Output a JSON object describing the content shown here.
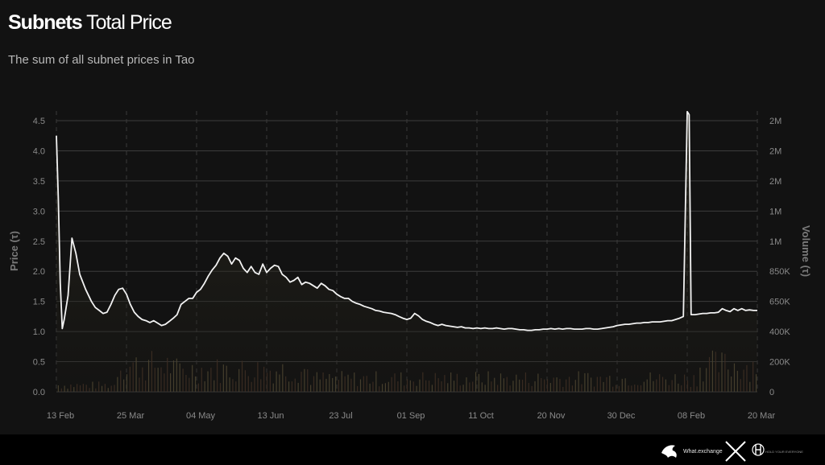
{
  "header": {
    "title_bold": "Subnets",
    "title_light": "Total Price",
    "subtitle": "The sum of all subnet prices in Tao"
  },
  "chart_data": {
    "type": "line",
    "ylabel_left": "Price (τ)",
    "ylabel_right": "Volume (τ)",
    "y_left_ticks": [
      "0.0",
      "0.5",
      "1.0",
      "1.5",
      "2.0",
      "2.5",
      "3.0",
      "3.5",
      "4.0",
      "4.5"
    ],
    "y_left_lim": [
      0,
      4.5
    ],
    "y_right_ticks": [
      "0",
      "200K",
      "400K",
      "650K",
      "850K",
      "1M",
      "1M",
      "2M",
      "2M",
      "2M"
    ],
    "x_ticks": [
      "13 Feb",
      "25 Mar",
      "04 May",
      "13 Jun",
      "23 Jul",
      "01 Sep",
      "11 Oct",
      "20 Nov",
      "30 Dec",
      "08 Feb",
      "20 Mar"
    ],
    "grid": true,
    "series": [
      {
        "name": "Price",
        "color": "#f2f2f2",
        "points": [
          [
            0,
            4.25
          ],
          [
            1,
            3.2
          ],
          [
            2,
            1.8
          ],
          [
            3,
            1.05
          ],
          [
            4,
            1.2
          ],
          [
            6,
            1.6
          ],
          [
            8,
            2.55
          ],
          [
            10,
            2.3
          ],
          [
            12,
            1.95
          ],
          [
            15,
            1.7
          ],
          [
            18,
            1.5
          ],
          [
            20,
            1.4
          ],
          [
            22,
            1.35
          ],
          [
            24,
            1.3
          ],
          [
            26,
            1.32
          ],
          [
            28,
            1.45
          ],
          [
            30,
            1.6
          ],
          [
            32,
            1.7
          ],
          [
            34,
            1.72
          ],
          [
            36,
            1.62
          ],
          [
            38,
            1.45
          ],
          [
            40,
            1.32
          ],
          [
            42,
            1.25
          ],
          [
            44,
            1.2
          ],
          [
            46,
            1.18
          ],
          [
            48,
            1.15
          ],
          [
            50,
            1.18
          ],
          [
            52,
            1.14
          ],
          [
            54,
            1.1
          ],
          [
            56,
            1.12
          ],
          [
            58,
            1.17
          ],
          [
            60,
            1.22
          ],
          [
            62,
            1.28
          ],
          [
            64,
            1.45
          ],
          [
            66,
            1.5
          ],
          [
            68,
            1.55
          ],
          [
            70,
            1.55
          ],
          [
            72,
            1.65
          ],
          [
            74,
            1.7
          ],
          [
            76,
            1.8
          ],
          [
            78,
            1.92
          ],
          [
            80,
            2.02
          ],
          [
            82,
            2.1
          ],
          [
            84,
            2.22
          ],
          [
            86,
            2.3
          ],
          [
            88,
            2.25
          ],
          [
            90,
            2.12
          ],
          [
            92,
            2.22
          ],
          [
            94,
            2.18
          ],
          [
            96,
            2.05
          ],
          [
            98,
            1.98
          ],
          [
            100,
            2.08
          ],
          [
            102,
            1.98
          ],
          [
            104,
            1.95
          ],
          [
            106,
            2.12
          ],
          [
            108,
            1.98
          ],
          [
            110,
            2.05
          ],
          [
            112,
            2.1
          ],
          [
            114,
            2.08
          ],
          [
            116,
            1.95
          ],
          [
            118,
            1.9
          ],
          [
            120,
            1.82
          ],
          [
            122,
            1.85
          ],
          [
            124,
            1.9
          ],
          [
            126,
            1.78
          ],
          [
            128,
            1.82
          ],
          [
            130,
            1.8
          ],
          [
            132,
            1.76
          ],
          [
            134,
            1.72
          ],
          [
            136,
            1.8
          ],
          [
            138,
            1.76
          ],
          [
            140,
            1.7
          ],
          [
            142,
            1.68
          ],
          [
            144,
            1.62
          ],
          [
            146,
            1.58
          ],
          [
            148,
            1.55
          ],
          [
            150,
            1.55
          ],
          [
            152,
            1.5
          ],
          [
            154,
            1.47
          ],
          [
            156,
            1.45
          ],
          [
            158,
            1.42
          ],
          [
            160,
            1.4
          ],
          [
            162,
            1.38
          ],
          [
            164,
            1.35
          ],
          [
            166,
            1.34
          ],
          [
            168,
            1.32
          ],
          [
            170,
            1.31
          ],
          [
            172,
            1.3
          ],
          [
            174,
            1.28
          ],
          [
            176,
            1.25
          ],
          [
            178,
            1.22
          ],
          [
            180,
            1.2
          ],
          [
            182,
            1.22
          ],
          [
            184,
            1.3
          ],
          [
            186,
            1.26
          ],
          [
            188,
            1.2
          ],
          [
            190,
            1.17
          ],
          [
            192,
            1.15
          ],
          [
            194,
            1.12
          ],
          [
            196,
            1.1
          ],
          [
            198,
            1.12
          ],
          [
            200,
            1.1
          ],
          [
            202,
            1.09
          ],
          [
            204,
            1.08
          ],
          [
            206,
            1.07
          ],
          [
            208,
            1.08
          ],
          [
            210,
            1.06
          ],
          [
            212,
            1.06
          ],
          [
            214,
            1.05
          ],
          [
            216,
            1.06
          ],
          [
            218,
            1.05
          ],
          [
            220,
            1.06
          ],
          [
            222,
            1.05
          ],
          [
            224,
            1.05
          ],
          [
            226,
            1.06
          ],
          [
            228,
            1.05
          ],
          [
            230,
            1.04
          ],
          [
            232,
            1.05
          ],
          [
            234,
            1.05
          ],
          [
            236,
            1.04
          ],
          [
            238,
            1.03
          ],
          [
            240,
            1.03
          ],
          [
            242,
            1.02
          ],
          [
            244,
            1.02
          ],
          [
            246,
            1.03
          ],
          [
            248,
            1.03
          ],
          [
            250,
            1.04
          ],
          [
            252,
            1.04
          ],
          [
            254,
            1.05
          ],
          [
            256,
            1.04
          ],
          [
            258,
            1.05
          ],
          [
            260,
            1.04
          ],
          [
            262,
            1.05
          ],
          [
            264,
            1.05
          ],
          [
            266,
            1.04
          ],
          [
            268,
            1.04
          ],
          [
            270,
            1.04
          ],
          [
            272,
            1.05
          ],
          [
            274,
            1.05
          ],
          [
            276,
            1.04
          ],
          [
            278,
            1.04
          ],
          [
            280,
            1.05
          ],
          [
            282,
            1.06
          ],
          [
            284,
            1.07
          ],
          [
            286,
            1.08
          ],
          [
            288,
            1.1
          ],
          [
            290,
            1.11
          ],
          [
            292,
            1.12
          ],
          [
            294,
            1.12
          ],
          [
            296,
            1.13
          ],
          [
            298,
            1.14
          ],
          [
            300,
            1.14
          ],
          [
            302,
            1.15
          ],
          [
            304,
            1.15
          ],
          [
            306,
            1.16
          ],
          [
            308,
            1.16
          ],
          [
            310,
            1.16
          ],
          [
            312,
            1.17
          ],
          [
            314,
            1.18
          ],
          [
            316,
            1.18
          ],
          [
            318,
            1.2
          ],
          [
            320,
            1.22
          ],
          [
            322,
            1.25
          ],
          [
            324,
            4.65
          ],
          [
            325,
            4.6
          ],
          [
            326,
            1.28
          ],
          [
            328,
            1.28
          ],
          [
            330,
            1.29
          ],
          [
            332,
            1.3
          ],
          [
            334,
            1.3
          ],
          [
            336,
            1.31
          ],
          [
            338,
            1.31
          ],
          [
            340,
            1.32
          ],
          [
            342,
            1.38
          ],
          [
            344,
            1.35
          ],
          [
            346,
            1.33
          ],
          [
            348,
            1.38
          ],
          [
            350,
            1.35
          ],
          [
            352,
            1.38
          ],
          [
            354,
            1.35
          ],
          [
            356,
            1.36
          ],
          [
            358,
            1.35
          ],
          [
            360,
            1.35
          ]
        ]
      }
    ],
    "volume_profile": {
      "name": "Volume",
      "fill_top": "#3a3626",
      "fill_bottom": "#1a1914",
      "price_line_color": "#ffffff"
    }
  },
  "footer": {
    "brand": "What.exchange",
    "partner_text": "HOLD YOUR EVERYONE"
  }
}
